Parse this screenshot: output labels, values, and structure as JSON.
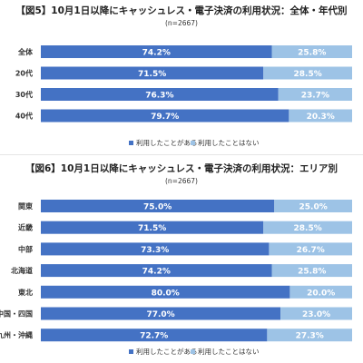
{
  "colors": {
    "used": "#4472C4",
    "not_used": "#9DC3E6",
    "text": "#333333"
  },
  "chart_data": [
    {
      "type": "bar",
      "orientation": "horizontal-stacked-100",
      "title": "【図5】10月1日以降にキャッシュレス・電子決済の利用状況：全体・年代別",
      "subtitle": "(n=2667)",
      "categories": [
        "全体",
        "20代",
        "30代",
        "40代"
      ],
      "series": [
        {
          "name": "利用したことがある",
          "values": [
            74.2,
            71.5,
            76.3,
            79.7
          ]
        },
        {
          "name": "利用したことはない",
          "values": [
            25.8,
            28.5,
            23.7,
            20.3
          ]
        }
      ],
      "value_labels": {
        "used": [
          "74.2%",
          "71.5%",
          "76.3%",
          "79.7%"
        ],
        "not_used": [
          "25.8%",
          "28.5%",
          "23.7%",
          "20.3%"
        ]
      },
      "xlim": [
        0,
        100
      ],
      "legend": "bottom-center"
    },
    {
      "type": "bar",
      "orientation": "horizontal-stacked-100",
      "title": "【図6】10月1日以降にキャッシュレス・電子決済の利用状況：エリア別",
      "subtitle": "(n=2667)",
      "categories": [
        "関東",
        "近畿",
        "中部",
        "北海道",
        "東北",
        "中国・四国",
        "九州・沖縄"
      ],
      "series": [
        {
          "name": "利用したことがある",
          "values": [
            75.0,
            71.5,
            73.3,
            74.2,
            80.0,
            77.0,
            72.7
          ]
        },
        {
          "name": "利用したことはない",
          "values": [
            25.0,
            28.5,
            26.7,
            25.8,
            20.0,
            23.0,
            27.3
          ]
        }
      ],
      "value_labels": {
        "used": [
          "75.0%",
          "71.5%",
          "73.3%",
          "74.2%",
          "80.0%",
          "77.0%",
          "72.7%"
        ],
        "not_used": [
          "25.0%",
          "28.5%",
          "26.7%",
          "25.8%",
          "20.0%",
          "23.0%",
          "27.3%"
        ]
      },
      "xlim": [
        0,
        100
      ],
      "legend": "bottom-center"
    }
  ]
}
